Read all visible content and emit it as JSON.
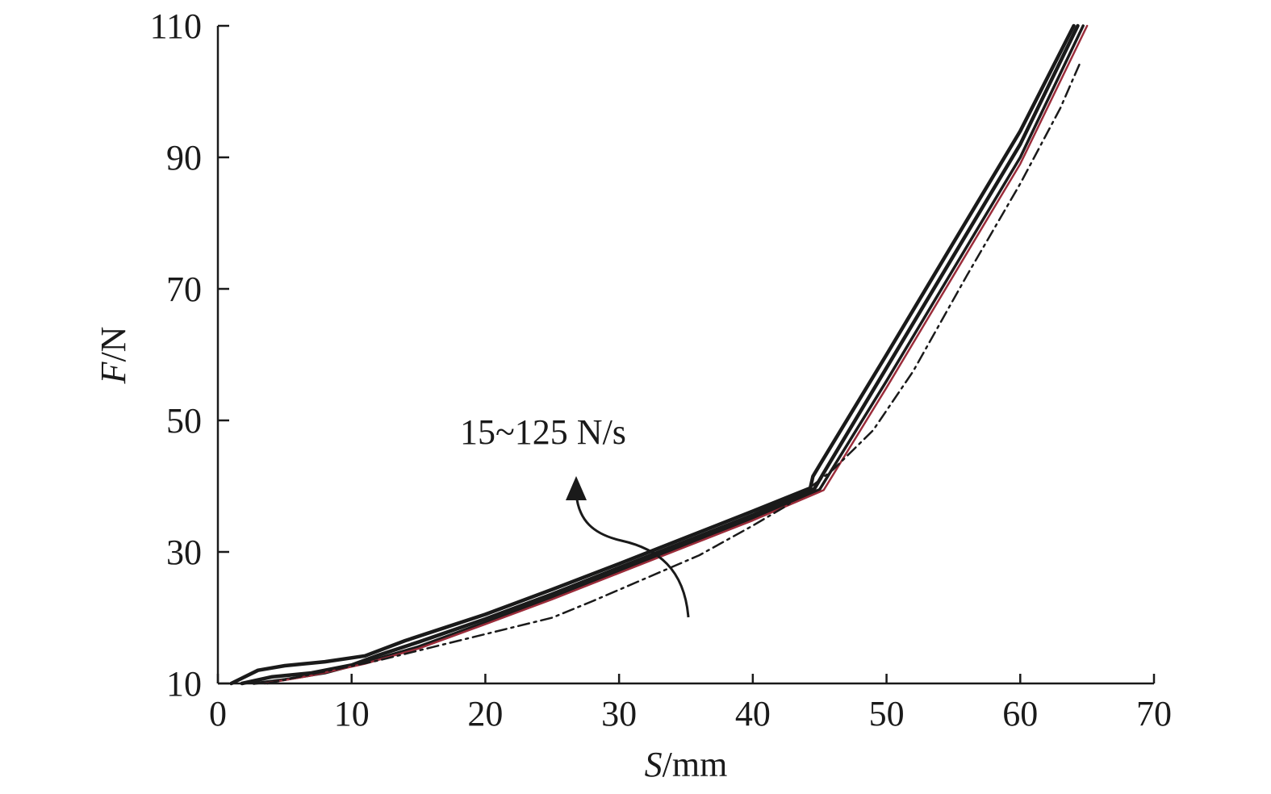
{
  "chart_data": {
    "type": "line",
    "xlabel_italic": "S",
    "xlabel_unit": "/mm",
    "ylabel_italic": "F",
    "ylabel_unit": "/N",
    "xlim": [
      0,
      70
    ],
    "ylim": [
      10,
      110
    ],
    "xticks": [
      0,
      10,
      20,
      30,
      40,
      50,
      60,
      70
    ],
    "yticks": [
      10,
      30,
      50,
      70,
      90,
      110
    ],
    "grid": false,
    "annotation": "15~125 N/s",
    "colors": {
      "axis": "#1a1a1a",
      "dark_line": "#1a1a1a",
      "red_line": "#9b2c3a",
      "dash_dot": "#1a1a1a"
    },
    "series": [
      {
        "style": "solid",
        "color": "dark",
        "width": 4.5,
        "x": [
          1.0,
          3,
          5,
          8,
          11,
          14,
          17,
          20,
          25,
          30,
          35,
          40,
          44.3,
          44.5,
          45.0,
          50,
          55,
          60,
          64.0
        ],
        "y": [
          10,
          12.0,
          12.7,
          13.3,
          14.2,
          16.5,
          18.5,
          20.5,
          24.3,
          28.2,
          32.2,
          36.2,
          39.7,
          41.5,
          43.2,
          60,
          77,
          94,
          110
        ]
      },
      {
        "style": "solid",
        "color": "dark",
        "width": 4.5,
        "x": [
          1.8,
          4,
          7,
          10,
          12,
          15,
          20,
          25,
          30,
          35,
          40,
          44.6,
          45.5,
          50,
          55,
          60,
          64.3
        ],
        "y": [
          10,
          11.0,
          11.6,
          12.8,
          14.3,
          16.3,
          19.8,
          23.6,
          27.6,
          31.6,
          35.6,
          39.6,
          42.7,
          58,
          75,
          92,
          110
        ]
      },
      {
        "style": "solid",
        "color": "dark",
        "width": 3.5,
        "x": [
          2.7,
          5,
          8,
          11,
          15,
          20,
          25,
          30,
          35,
          40,
          45.0,
          50,
          55,
          60,
          64.7
        ],
        "y": [
          10,
          10.6,
          11.6,
          13.2,
          15.6,
          19.3,
          23.1,
          27.1,
          31.1,
          35.1,
          39.5,
          56,
          73,
          90,
          110
        ]
      },
      {
        "style": "solid",
        "color": "red",
        "width": 2.5,
        "x": [
          3.5,
          7,
          11,
          15,
          20,
          25,
          30,
          35,
          40,
          45.3,
          50,
          55,
          60,
          65.0
        ],
        "y": [
          10,
          11.2,
          13.0,
          15.3,
          19.0,
          22.8,
          26.8,
          30.8,
          34.8,
          39.4,
          55,
          72,
          89,
          110
        ]
      },
      {
        "style": "dashdot",
        "color": "dark",
        "width": 2.5,
        "x": [
          3.7,
          8,
          12,
          18,
          22,
          25,
          28,
          32,
          36,
          40,
          42.5,
          46,
          49,
          52,
          56,
          60,
          63,
          64.5
        ],
        "y": [
          10,
          11.8,
          13.5,
          16.5,
          18.5,
          20.0,
          22.5,
          26.0,
          29.5,
          34.0,
          37.0,
          42.5,
          48.5,
          57.5,
          72.0,
          86.0,
          97.5,
          104.5
        ]
      }
    ]
  }
}
